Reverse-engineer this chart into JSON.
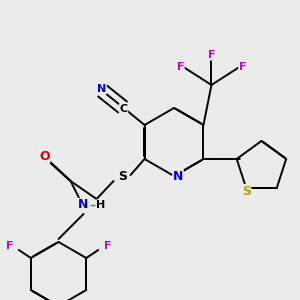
{
  "bg_color": "#ebebeb",
  "bond_color": "#000000",
  "bond_width": 1.4,
  "dbo": 0.012,
  "atom_colors": {
    "C": "#000000",
    "N": "#0000cc",
    "O": "#dd0000",
    "S_thio": "#aaaa00",
    "S_link": "#000000",
    "F": "#cc00cc",
    "H": "#000000"
  },
  "fs": 9,
  "fs_s": 8,
  "fs_f": 8
}
